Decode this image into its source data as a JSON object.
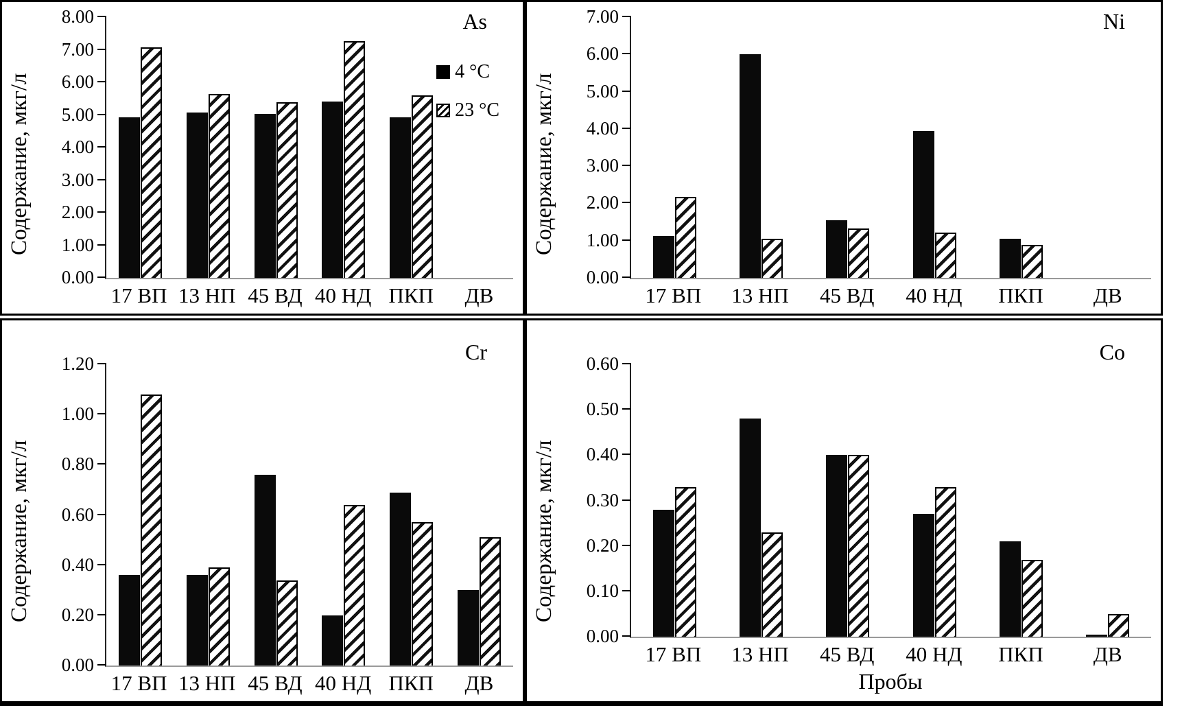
{
  "figure": {
    "description": "2x2 grid of grouped bar charts of element content in water samples at two storage temperatures",
    "colors": {
      "bar_solid": "#000000",
      "hatch_foreground": "#000000",
      "hatch_background": "#ffffff",
      "axis_line": "#222222",
      "baseline": "#999999",
      "border": "#000000"
    }
  },
  "chart_data": [
    {
      "type": "bar",
      "title": "As",
      "ylabel": "Содержание, мкг/л",
      "xlabel": "",
      "categories": [
        "17 ВП",
        "13 НП",
        "45 ВД",
        "40 НД",
        "ПКП",
        "ДВ"
      ],
      "series": [
        {
          "name": "4 °C",
          "style": "solid-black",
          "values": [
            4.93,
            5.08,
            5.03,
            5.42,
            4.93,
            0
          ]
        },
        {
          "name": "23 °C",
          "style": "hatched",
          "values": [
            7.08,
            5.65,
            5.4,
            7.27,
            5.6,
            0
          ]
        }
      ],
      "ylim": [
        0,
        8
      ],
      "ytick_step": 1,
      "grid": false,
      "legend_position": "top-right"
    },
    {
      "type": "bar",
      "title": "Ni",
      "ylabel": "Содержание, мкг/л",
      "xlabel": "",
      "categories": [
        "17 ВП",
        "13 НП",
        "45 ВД",
        "40 НД",
        "ПКП",
        "ДВ"
      ],
      "series": [
        {
          "name": "4 °C",
          "style": "solid-black",
          "values": [
            1.12,
            6.0,
            1.55,
            3.95,
            1.05,
            0
          ]
        },
        {
          "name": "23 °C",
          "style": "hatched",
          "values": [
            2.18,
            1.05,
            1.33,
            1.22,
            0.88,
            0
          ]
        }
      ],
      "ylim": [
        0,
        7
      ],
      "ytick_step": 1,
      "grid": false,
      "legend_position": "none"
    },
    {
      "type": "bar",
      "title": "Cr",
      "ylabel": "Содержание, мкг/л",
      "xlabel": "",
      "categories": [
        "17 ВП",
        "13 НП",
        "45 ВД",
        "40 НД",
        "ПКП",
        "ДВ"
      ],
      "series": [
        {
          "name": "4 °C",
          "style": "solid-black",
          "values": [
            0.36,
            0.36,
            0.76,
            0.2,
            0.69,
            0.3
          ]
        },
        {
          "name": "23 °C",
          "style": "hatched",
          "values": [
            1.08,
            0.39,
            0.34,
            0.64,
            0.57,
            0.51
          ]
        }
      ],
      "ylim": [
        0,
        1.2
      ],
      "ytick_step": 0.2,
      "grid": false,
      "legend_position": "none"
    },
    {
      "type": "bar",
      "title": "Co",
      "ylabel": "Содержание, мкг/л",
      "xlabel": "Пробы",
      "categories": [
        "17 ВП",
        "13 НП",
        "45 ВД",
        "40 НД",
        "ПКП",
        "ДВ"
      ],
      "series": [
        {
          "name": "4 °C",
          "style": "solid-black",
          "values": [
            0.28,
            0.48,
            0.4,
            0.27,
            0.21,
            0.005
          ]
        },
        {
          "name": "23 °C",
          "style": "hatched",
          "values": [
            0.33,
            0.23,
            0.4,
            0.33,
            0.17,
            0.05
          ]
        }
      ],
      "ylim": [
        0,
        0.6
      ],
      "ytick_step": 0.1,
      "grid": false,
      "legend_position": "none"
    }
  ]
}
